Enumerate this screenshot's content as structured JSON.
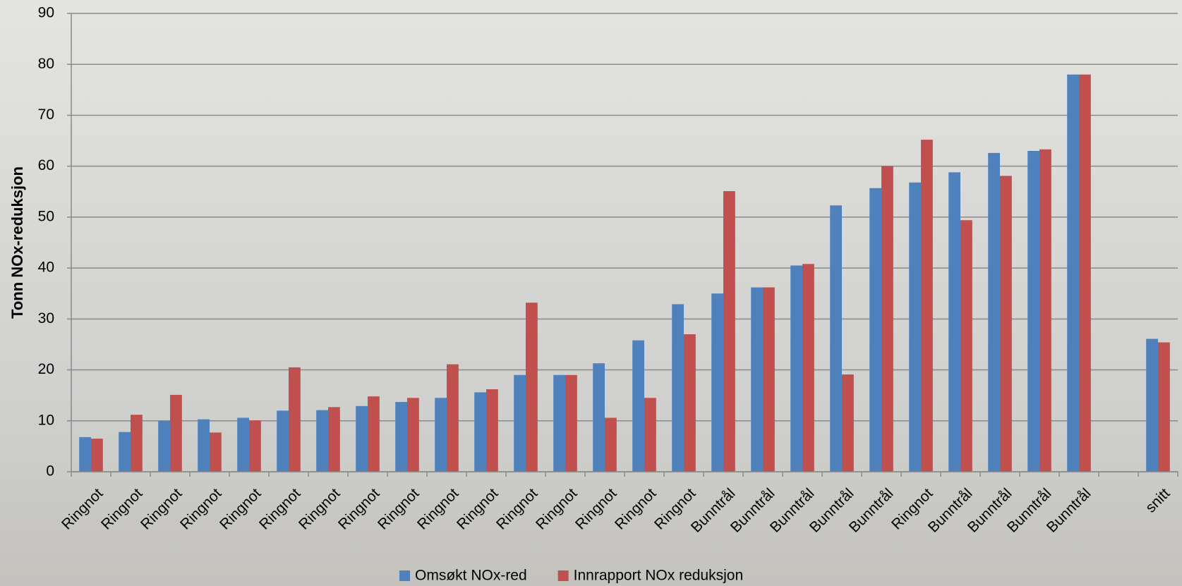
{
  "chart_data": {
    "type": "bar",
    "y_label": "Tonn NOx-reduksjon",
    "categories": [
      "Ringnot",
      "Ringnot",
      "Ringnot",
      "Ringnot",
      "Ringnot",
      "Ringnot",
      "Ringnot",
      "Ringnot",
      "Ringnot",
      "Ringnot",
      "Ringnot",
      "Ringnot",
      "Ringnot",
      "Ringnot",
      "Ringnot",
      "Ringnot",
      "Bunntrål",
      "Bunntrål",
      "Bunntrål",
      "Bunntrål",
      "Bunntrål",
      "Ringnot",
      "Bunntrål",
      "Bunntrål",
      "Bunntrål",
      "Bunntrål",
      null,
      "snitt"
    ],
    "series": [
      {
        "name": "Omsøkt NOx-red",
        "color": "#4f81bd",
        "values": [
          6.8,
          7.8,
          10,
          10.3,
          10.6,
          12,
          12.1,
          12.9,
          13.7,
          14.5,
          15.6,
          19,
          19,
          21.3,
          25.8,
          32.9,
          35,
          36.2,
          40.5,
          52.3,
          55.7,
          56.8,
          58.8,
          62.6,
          63,
          78,
          null,
          26.1
        ]
      },
      {
        "name": "Innrapport NOx reduksjon",
        "color": "#c0504d",
        "values": [
          6.5,
          11.2,
          15.1,
          7.7,
          10.1,
          20.5,
          12.7,
          14.8,
          14.5,
          21.1,
          16.2,
          33.2,
          19,
          10.6,
          14.5,
          27,
          55.1,
          36.2,
          40.8,
          19.1,
          60,
          65.2,
          49.4,
          58.1,
          63.3,
          78,
          null,
          25.4
        ]
      }
    ],
    "ylim": [
      0,
      90
    ],
    "yticks": [
      0,
      10,
      20,
      30,
      40,
      50,
      60,
      70,
      80,
      90
    ],
    "grid": true,
    "legend": "bottom"
  }
}
